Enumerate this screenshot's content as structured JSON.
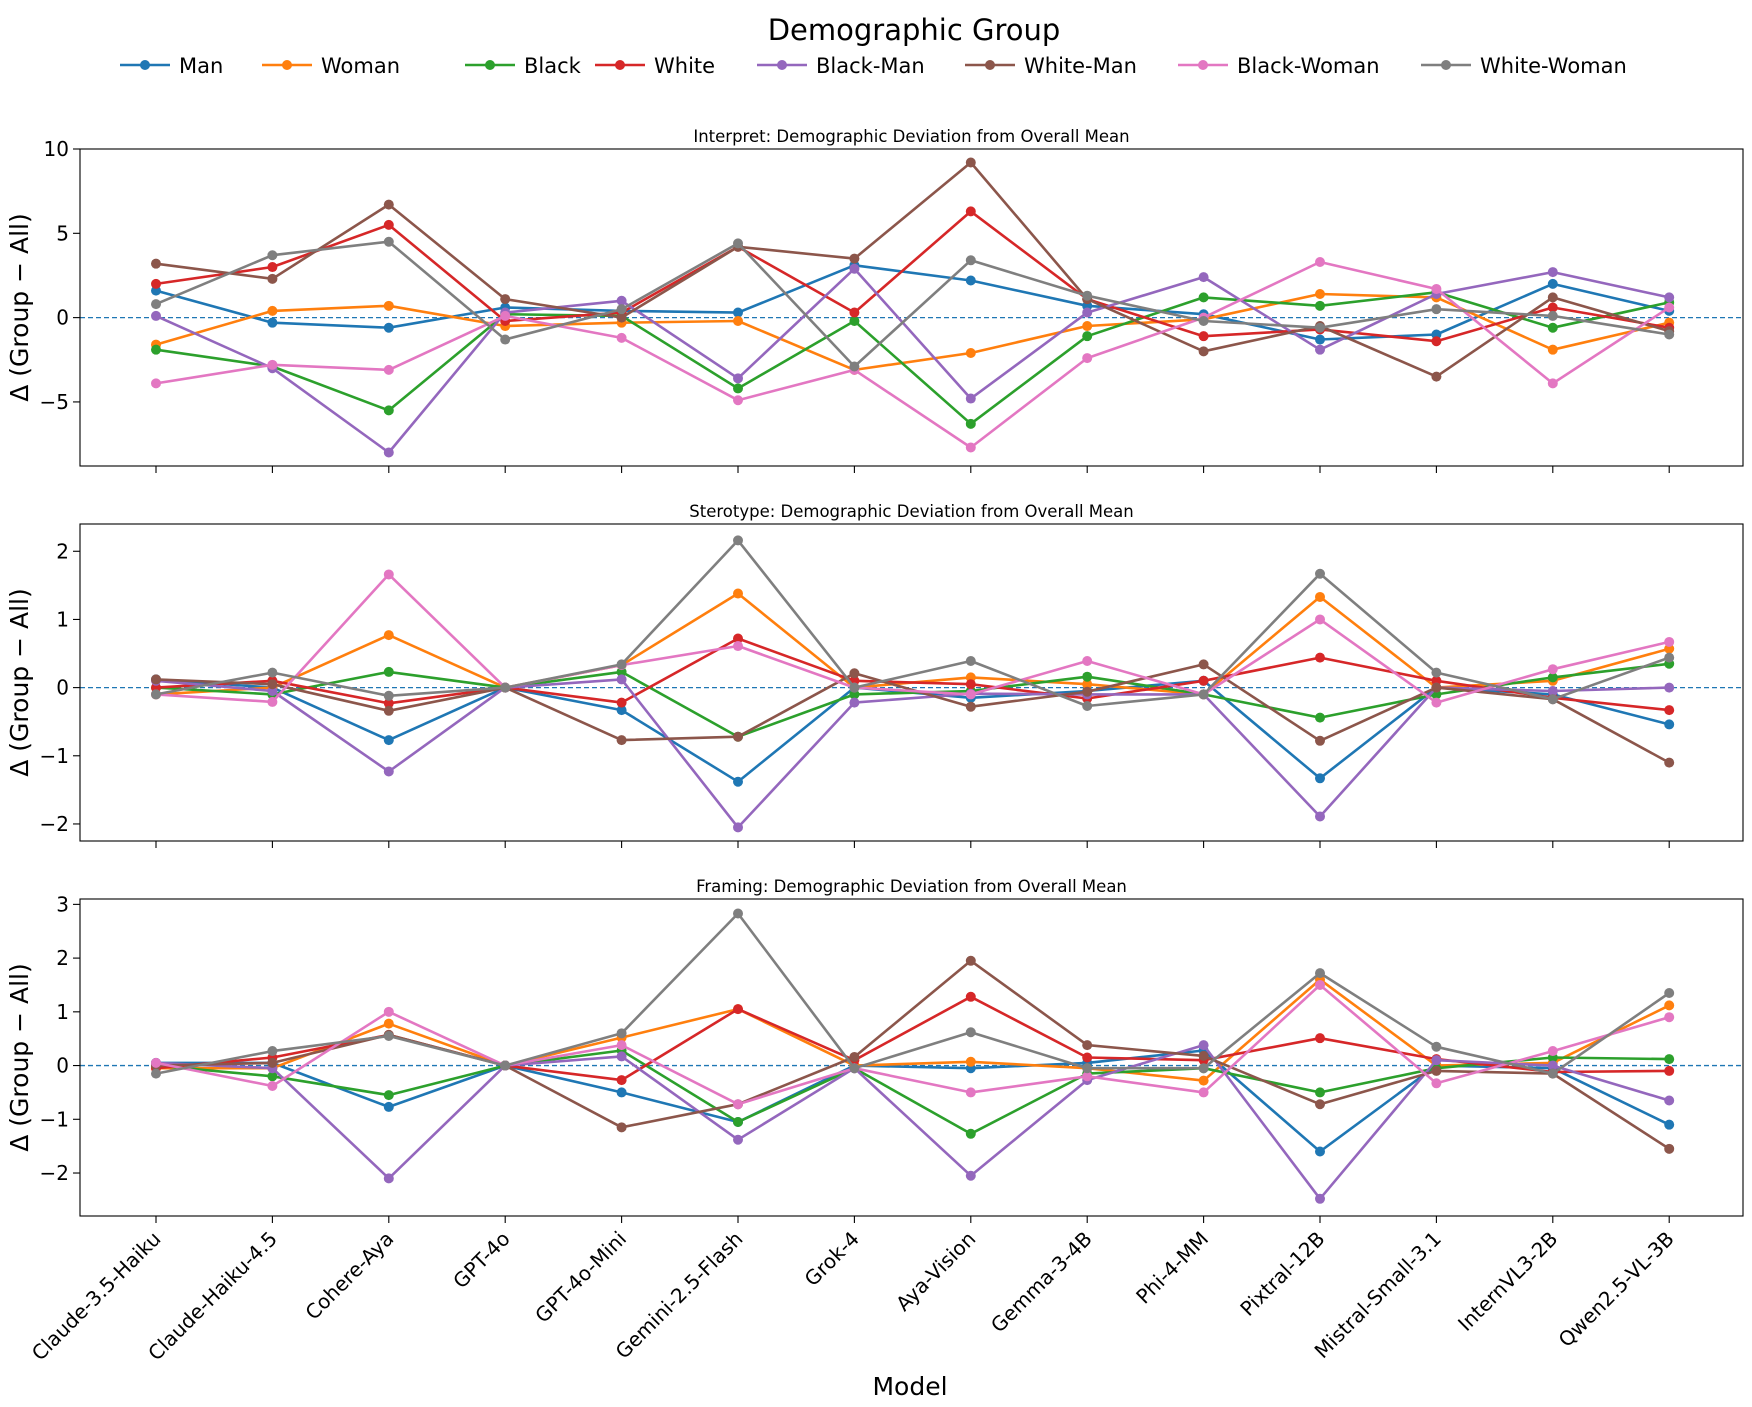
{
  "legend": {
    "title": "Demographic Group",
    "placement": "top-center"
  },
  "xlabel": "Model",
  "chart_data": {
    "type": "line",
    "categories": [
      "Claude-3.5-Haiku",
      "Claude-Haiku-4.5",
      "Cohere-Aya",
      "GPT-4o",
      "GPT-4o-Mini",
      "Gemini-2.5-Flash",
      "Grok-4",
      "Aya-Vision",
      "Gemma-3-4B",
      "Phi-4-MM",
      "Pixtral-12B",
      "Mistral-Small-3.1",
      "InternVL3-2B",
      "Qwen2.5-VL-3B"
    ],
    "series_meta": [
      {
        "name": "Man",
        "color": "#1f77b4"
      },
      {
        "name": "Woman",
        "color": "#ff7f0e"
      },
      {
        "name": "Black",
        "color": "#2ca02c"
      },
      {
        "name": "White",
        "color": "#d62728"
      },
      {
        "name": "Black-Man",
        "color": "#9467bd"
      },
      {
        "name": "White-Man",
        "color": "#8c564b"
      },
      {
        "name": "Black-Woman",
        "color": "#e377c2"
      },
      {
        "name": "White-Woman",
        "color": "#7f7f7f"
      }
    ],
    "panels": [
      {
        "title": "Interpret: Demographic Deviation from Overall Mean",
        "ylabel": "Δ (Group − All)",
        "ylim": [
          -8.8,
          10.0
        ],
        "yticks": [
          10,
          5,
          0,
          -5
        ],
        "series": [
          {
            "name": "Man",
            "values": [
              1.6,
              -0.3,
              -0.6,
              0.6,
              0.4,
              0.3,
              3.1,
              2.2,
              0.7,
              0.2,
              -1.3,
              -1.0,
              2.0,
              0.4
            ]
          },
          {
            "name": "Woman",
            "values": [
              -1.6,
              0.4,
              0.7,
              -0.5,
              -0.3,
              -0.2,
              -3.1,
              -2.1,
              -0.5,
              -0.1,
              1.4,
              1.2,
              -1.9,
              -0.3
            ]
          },
          {
            "name": "Black",
            "values": [
              -1.9,
              -2.9,
              -5.5,
              0.2,
              0.1,
              -4.2,
              -0.2,
              -6.3,
              -1.1,
              1.2,
              0.7,
              1.5,
              -0.6,
              0.9
            ]
          },
          {
            "name": "White",
            "values": [
              2.0,
              3.0,
              5.5,
              -0.2,
              0.3,
              4.2,
              0.3,
              6.3,
              1.1,
              -1.1,
              -0.7,
              -1.4,
              0.6,
              -0.6
            ]
          },
          {
            "name": "Black-Man",
            "values": [
              0.1,
              -3.0,
              -8.0,
              0.3,
              1.0,
              -3.6,
              2.9,
              -4.8,
              0.3,
              2.4,
              -1.9,
              1.4,
              2.7,
              1.2
            ]
          },
          {
            "name": "White-Man",
            "values": [
              3.2,
              2.3,
              6.7,
              1.1,
              0.0,
              4.2,
              3.5,
              9.2,
              1.1,
              -2.0,
              -0.5,
              -3.5,
              1.2,
              -0.8
            ]
          },
          {
            "name": "Black-Woman",
            "values": [
              -3.9,
              -2.8,
              -3.1,
              0.1,
              -1.2,
              -4.9,
              -3.1,
              -7.7,
              -2.4,
              0.0,
              3.3,
              1.7,
              -3.9,
              0.6
            ]
          },
          {
            "name": "White-Woman",
            "values": [
              0.8,
              3.7,
              4.5,
              -1.3,
              0.5,
              4.4,
              -2.9,
              3.4,
              1.3,
              -0.2,
              -0.6,
              0.5,
              0.1,
              -1.0
            ]
          }
        ]
      },
      {
        "title": "Sterotype: Demographic Deviation from Overall Mean",
        "ylabel": "Δ (Group − All)",
        "ylim": [
          -2.25,
          2.4
        ],
        "yticks": [
          2,
          1,
          0,
          -1,
          -2
        ],
        "series": [
          {
            "name": "Man",
            "values": [
              0.12,
              0.0,
              -0.77,
              0.0,
              -0.33,
              -1.38,
              0.0,
              -0.15,
              -0.05,
              0.1,
              -1.33,
              0.0,
              -0.1,
              -0.54
            ]
          },
          {
            "name": "Woman",
            "values": [
              -0.1,
              0.0,
              0.77,
              0.0,
              0.33,
              1.38,
              0.0,
              0.15,
              0.05,
              -0.1,
              1.33,
              0.0,
              0.1,
              0.57
            ]
          },
          {
            "name": "Black",
            "values": [
              0.0,
              -0.1,
              0.23,
              0.0,
              0.23,
              -0.72,
              -0.1,
              -0.05,
              0.16,
              -0.1,
              -0.44,
              -0.1,
              0.15,
              0.35
            ]
          },
          {
            "name": "White",
            "values": [
              0.0,
              0.1,
              -0.23,
              0.0,
              -0.22,
              0.72,
              0.1,
              0.05,
              -0.16,
              0.1,
              0.44,
              0.1,
              -0.15,
              -0.33
            ]
          },
          {
            "name": "Black-Man",
            "values": [
              0.1,
              -0.05,
              -1.23,
              0.0,
              0.12,
              -2.05,
              -0.22,
              -0.09,
              -0.1,
              -0.1,
              -1.89,
              0.0,
              -0.05,
              0.0
            ]
          },
          {
            "name": "White-Man",
            "values": [
              0.12,
              0.05,
              -0.34,
              0.0,
              -0.77,
              -0.72,
              0.21,
              -0.28,
              -0.06,
              0.34,
              -0.78,
              0.0,
              -0.17,
              -1.1
            ]
          },
          {
            "name": "Black-Woman",
            "values": [
              -0.1,
              -0.21,
              1.66,
              0.0,
              0.33,
              0.61,
              0.0,
              -0.1,
              0.39,
              -0.1,
              1.0,
              -0.22,
              0.27,
              0.67
            ]
          },
          {
            "name": "White-Woman",
            "values": [
              -0.1,
              0.22,
              -0.12,
              0.0,
              0.34,
              2.16,
              0.0,
              0.39,
              -0.27,
              -0.1,
              1.67,
              0.22,
              -0.17,
              0.44
            ]
          }
        ]
      },
      {
        "title": "Framing: Demographic Deviation from Overall Mean",
        "ylabel": "Δ (Group − All)",
        "ylim": [
          -2.8,
          3.1
        ],
        "yticks": [
          3,
          2,
          1,
          0,
          -1,
          -2
        ],
        "series": [
          {
            "name": "Man",
            "values": [
              0.05,
              0.05,
              -0.77,
              0.0,
              -0.5,
              -1.05,
              0.0,
              -0.05,
              0.05,
              0.28,
              -1.6,
              0.0,
              -0.05,
              -1.1
            ]
          },
          {
            "name": "Woman",
            "values": [
              -0.05,
              -0.05,
              0.78,
              0.0,
              0.52,
              1.05,
              0.0,
              0.07,
              -0.05,
              -0.28,
              1.6,
              0.0,
              0.05,
              1.12
            ]
          },
          {
            "name": "Black",
            "values": [
              0.0,
              -0.2,
              -0.55,
              0.0,
              0.28,
              -1.05,
              -0.05,
              -1.27,
              -0.15,
              -0.05,
              -0.5,
              -0.05,
              0.15,
              0.12
            ]
          },
          {
            "name": "White",
            "values": [
              -0.05,
              0.15,
              0.57,
              0.0,
              -0.27,
              1.05,
              0.1,
              1.28,
              0.15,
              0.1,
              0.51,
              0.12,
              -0.12,
              -0.1
            ]
          },
          {
            "name": "Black-Man",
            "values": [
              0.05,
              -0.05,
              -2.1,
              0.0,
              0.17,
              -1.38,
              -0.05,
              -2.05,
              -0.27,
              0.38,
              -2.48,
              0.1,
              0.0,
              -0.65
            ]
          },
          {
            "name": "White-Man",
            "values": [
              0.0,
              0.05,
              0.57,
              0.0,
              -1.15,
              -0.72,
              0.16,
              1.95,
              0.38,
              0.18,
              -0.72,
              -0.1,
              -0.15,
              -1.55
            ]
          },
          {
            "name": "Black-Woman",
            "values": [
              0.05,
              -0.38,
              1.0,
              0.0,
              0.38,
              -0.72,
              -0.05,
              -0.5,
              -0.2,
              -0.5,
              1.5,
              -0.33,
              0.27,
              0.9
            ]
          },
          {
            "name": "White-Woman",
            "values": [
              -0.15,
              0.27,
              0.55,
              0.0,
              0.6,
              2.83,
              -0.05,
              0.62,
              -0.05,
              -0.05,
              1.72,
              0.35,
              -0.15,
              1.35
            ]
          }
        ]
      }
    ]
  }
}
